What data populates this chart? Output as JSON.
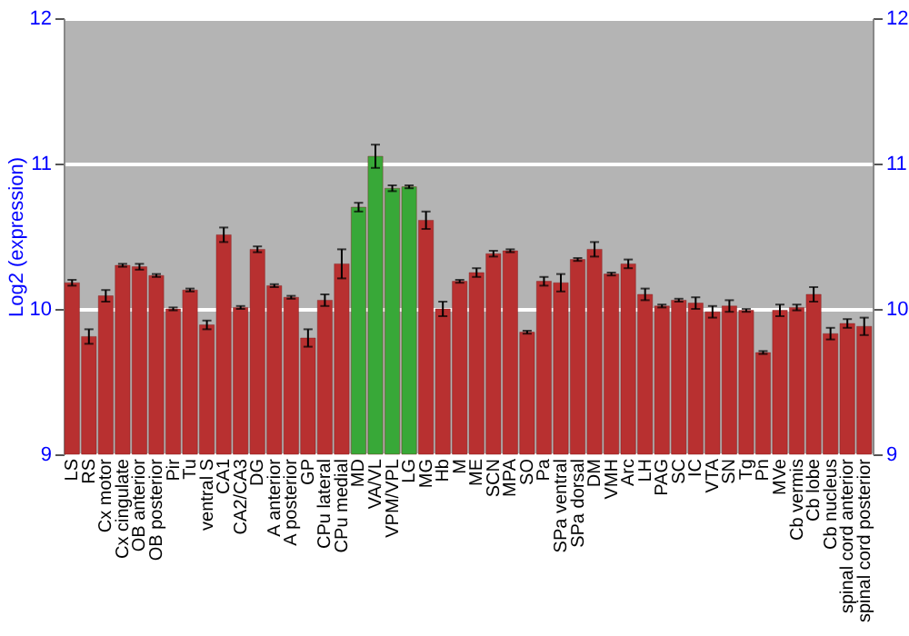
{
  "chart_data": {
    "type": "bar",
    "ylabel": "Log2 (expression)",
    "categories": [
      "LS",
      "RS",
      "Cx motor",
      "Cx cingulate",
      "OB anterior",
      "OB posterior",
      "Pir",
      "Tu",
      "ventral S",
      "CA1",
      "CA2/CA3",
      "DG",
      "A anterior",
      "A posterior",
      "GP",
      "CPu lateral",
      "CPu medial",
      "MD",
      "VA/VL",
      "VPM/VPL",
      "LG",
      "MG",
      "Hb",
      "M",
      "ME",
      "SCN",
      "MPA",
      "SO",
      "Pa",
      "SPa ventral",
      "SPa dorsal",
      "DM",
      "VMH",
      "Arc",
      "LH",
      "PAG",
      "SC",
      "IC",
      "VTA",
      "SN",
      "Tg",
      "Pn",
      "MVe",
      "Cb vermis",
      "Cb lobe",
      "Cb nucleus",
      "spinal cord anterior",
      "spinal cord posterior"
    ],
    "values": [
      10.18,
      9.81,
      10.09,
      10.3,
      10.29,
      10.23,
      10.0,
      10.13,
      9.89,
      10.51,
      10.01,
      10.41,
      10.16,
      10.08,
      9.8,
      10.06,
      10.31,
      10.7,
      11.05,
      10.83,
      10.84,
      10.61,
      10.0,
      10.19,
      10.25,
      10.38,
      10.4,
      9.84,
      10.19,
      10.18,
      10.34,
      10.41,
      10.24,
      10.31,
      10.1,
      10.02,
      10.06,
      10.04,
      9.98,
      10.02,
      9.99,
      9.7,
      9.99,
      10.01,
      10.1,
      9.83,
      9.9,
      9.88
    ],
    "errors": [
      0.02,
      0.05,
      0.04,
      0.01,
      0.02,
      0.01,
      0.01,
      0.01,
      0.03,
      0.05,
      0.01,
      0.02,
      0.01,
      0.01,
      0.06,
      0.04,
      0.1,
      0.03,
      0.08,
      0.02,
      0.01,
      0.06,
      0.05,
      0.01,
      0.03,
      0.02,
      0.01,
      0.01,
      0.03,
      0.06,
      0.01,
      0.05,
      0.01,
      0.03,
      0.04,
      0.01,
      0.01,
      0.04,
      0.04,
      0.04,
      0.01,
      0.01,
      0.04,
      0.02,
      0.05,
      0.04,
      0.03,
      0.06
    ],
    "colors": [
      "#b83030",
      "#b83030",
      "#b83030",
      "#b83030",
      "#b83030",
      "#b83030",
      "#b83030",
      "#b83030",
      "#b83030",
      "#b83030",
      "#b83030",
      "#b83030",
      "#b83030",
      "#b83030",
      "#b83030",
      "#b83030",
      "#b83030",
      "#38a838",
      "#38a838",
      "#38a838",
      "#38a838",
      "#b83030",
      "#b83030",
      "#b83030",
      "#b83030",
      "#b83030",
      "#b83030",
      "#b83030",
      "#b83030",
      "#b83030",
      "#b83030",
      "#b83030",
      "#b83030",
      "#b83030",
      "#b83030",
      "#b83030",
      "#b83030",
      "#b83030",
      "#b83030",
      "#b83030",
      "#b83030",
      "#b83030",
      "#b83030",
      "#b83030",
      "#b83030",
      "#b83030",
      "#b83030",
      "#b83030"
    ],
    "ylim": [
      9,
      12
    ],
    "yticks": [
      9,
      10,
      11,
      12
    ],
    "y2lim": [
      9,
      12
    ],
    "y2ticks": [
      9,
      10,
      11,
      12
    ],
    "grid": "y"
  }
}
